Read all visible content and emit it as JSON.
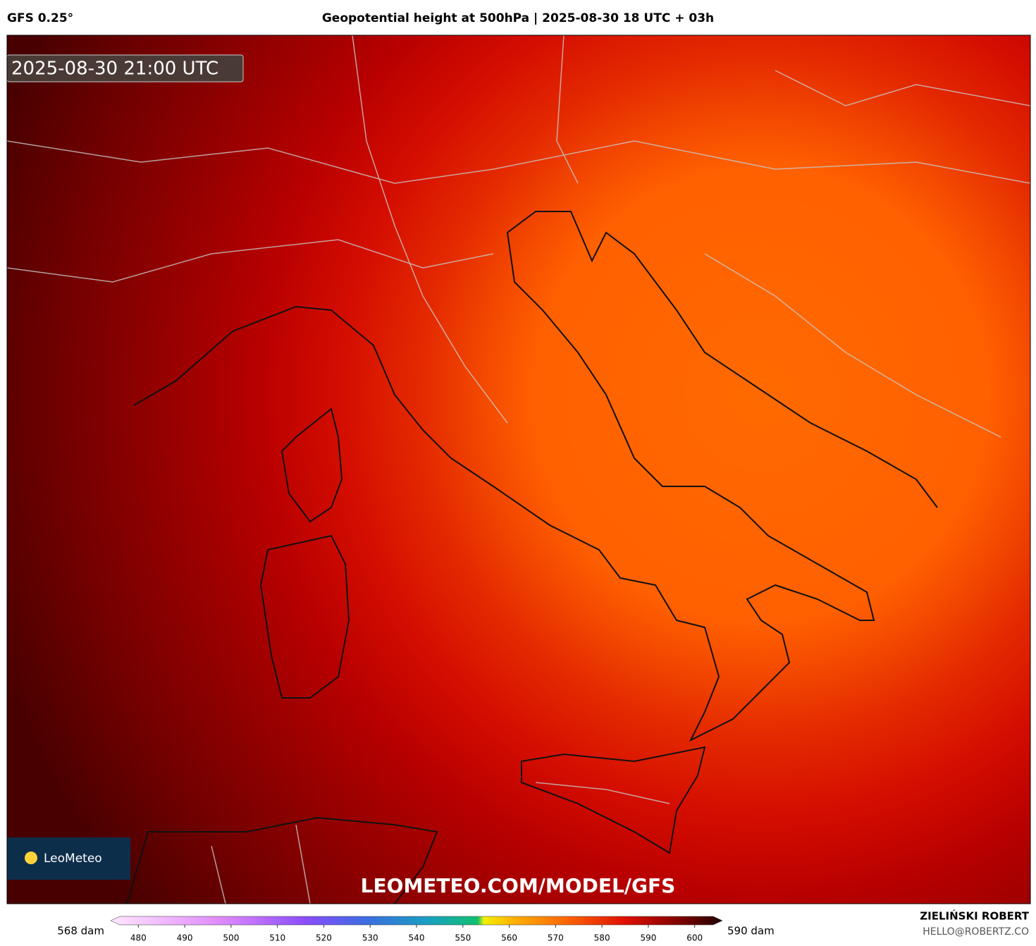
{
  "header": {
    "model": "GFS 0.25°",
    "title": "Geopotential height at 500hPa | 2025-08-30 18 UTC + 03h"
  },
  "map": {
    "valid_time": "2025-08-30 21:00 UTC",
    "logo": "LeoMeteo",
    "watermark": "LEOMETEO.COM/MODEL/GFS"
  },
  "colorbar": {
    "min_label": "568 dam",
    "max_label": "590 dam",
    "lim": [
      476,
      604
    ],
    "ticks": [
      480,
      490,
      500,
      510,
      520,
      530,
      540,
      550,
      560,
      570,
      580,
      590,
      600
    ]
  },
  "credit": {
    "author": "ZIELIŃSKI ROBERT",
    "email": "HELLO@ROBERTZ.CO"
  }
}
